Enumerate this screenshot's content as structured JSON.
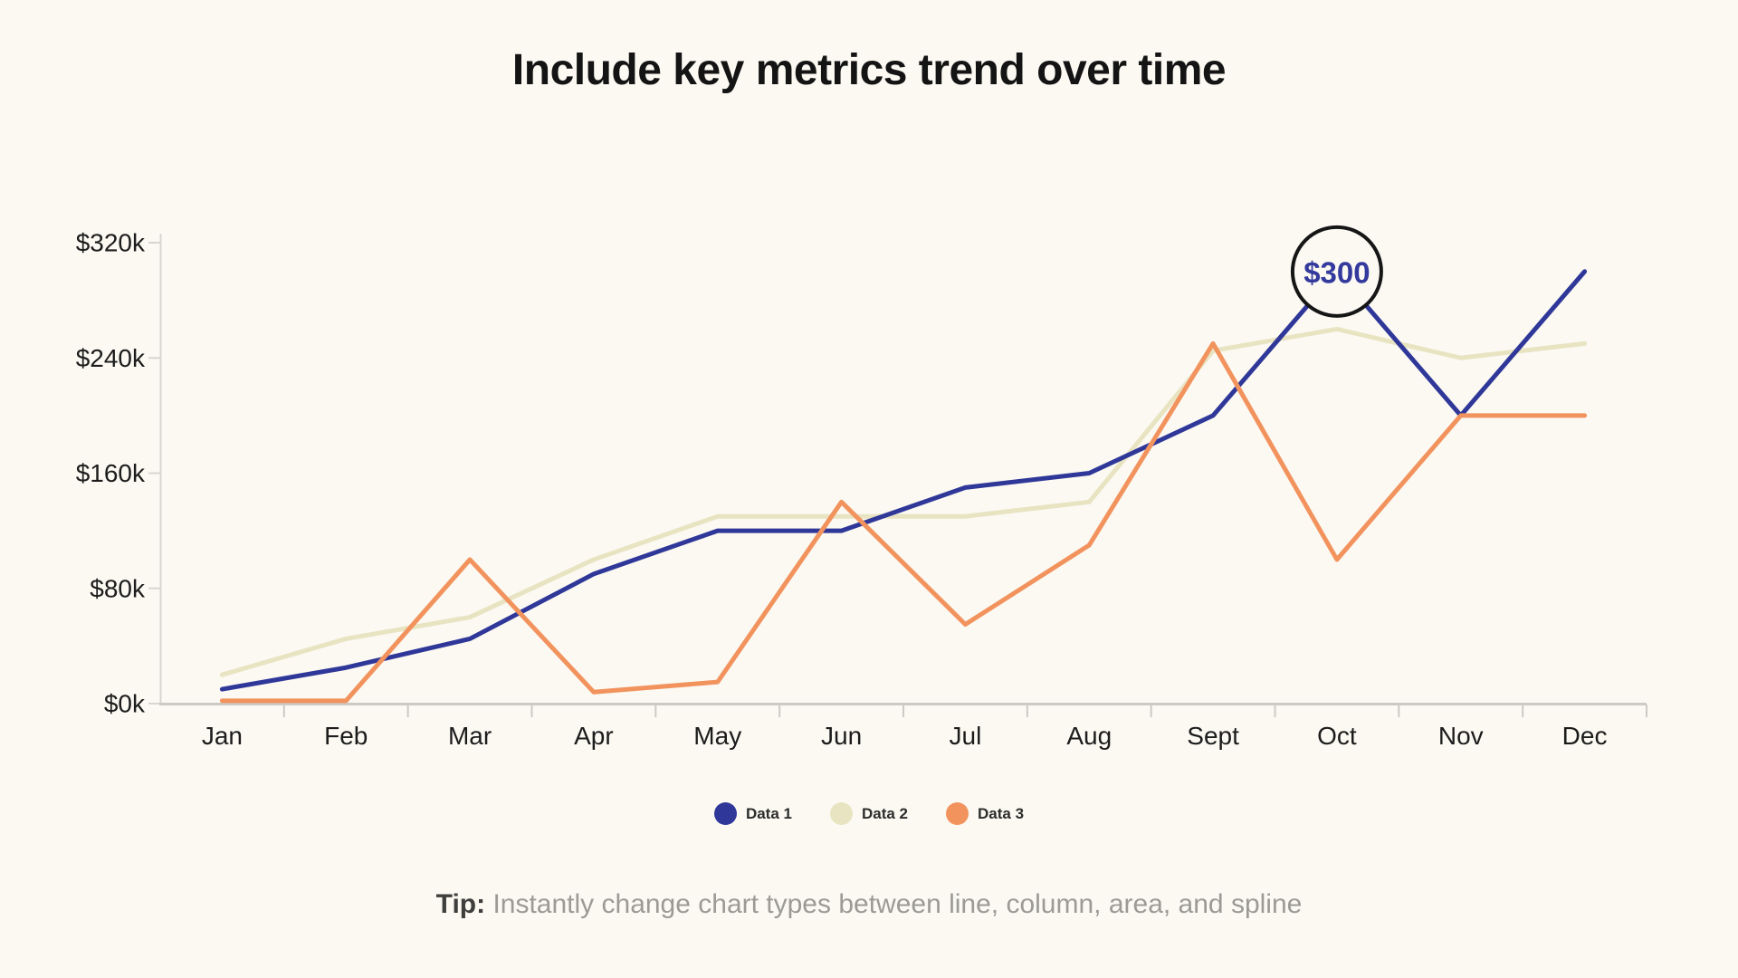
{
  "title": "Include key metrics trend over time",
  "tip": {
    "label": "Tip:",
    "text": " Instantly change chart types between line, column, area, and spline"
  },
  "chart_data": {
    "type": "line",
    "title": "Include key metrics trend over time",
    "categories": [
      "Jan",
      "Feb",
      "Mar",
      "Apr",
      "May",
      "Jun",
      "Jul",
      "Aug",
      "Sept",
      "Oct",
      "Nov",
      "Dec"
    ],
    "unit": "$k (USD thousands)",
    "ylim": [
      0,
      320
    ],
    "yticks": [
      0,
      80,
      160,
      240,
      320
    ],
    "ytick_labels": [
      "$0k",
      "$80k",
      "$160k",
      "$240k",
      "$320k"
    ],
    "grid": false,
    "legend_position": "bottom",
    "series": [
      {
        "name": "Data 1",
        "color": "#2f3799",
        "values": [
          10,
          25,
          45,
          90,
          120,
          120,
          150,
          160,
          200,
          300,
          200,
          300
        ]
      },
      {
        "name": "Data 2",
        "color": "#e8e4c2",
        "values": [
          20,
          45,
          60,
          100,
          130,
          130,
          130,
          140,
          245,
          260,
          240,
          250
        ]
      },
      {
        "name": "Data 3",
        "color": "#f2935e",
        "values": [
          2,
          2,
          100,
          8,
          15,
          140,
          55,
          110,
          250,
          100,
          200,
          200
        ]
      }
    ],
    "annotation": {
      "label": "$300",
      "series": "Data 1",
      "category": "Oct",
      "text_color": "#343a9d",
      "circle_stroke": "#161616"
    },
    "axis_colors": {
      "y_axis": "#d7d6d1",
      "x_axis": "#cbcac4",
      "tick_label": "#1c1c1c"
    }
  }
}
